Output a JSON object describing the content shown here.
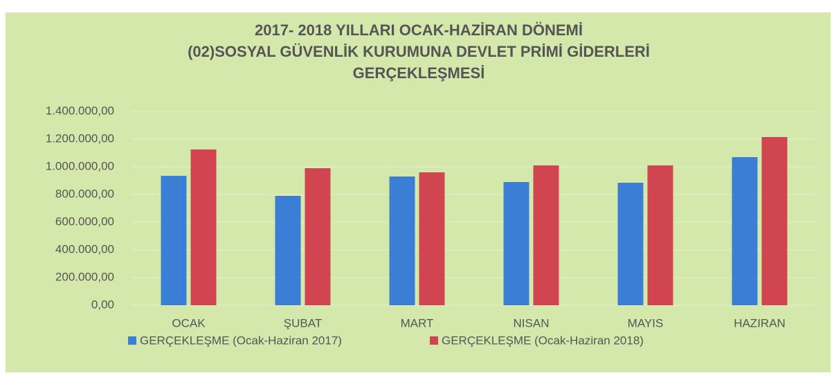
{
  "chart_data": {
    "type": "bar",
    "title": [
      "2017- 2018 YILLARI OCAK-HAZİRAN DÖNEMİ",
      "(02)SOSYAL GÜVENLİK KURUMUNA DEVLET PRİMİ GİDERLERİ",
      "GERÇEKLEŞMESİ"
    ],
    "categories": [
      "OCAK",
      "ŞUBAT",
      "MART",
      "NISAN",
      "MAYIS",
      "HAZIRAN"
    ],
    "series": [
      {
        "name": "GERÇEKLEŞME (Ocak-Haziran 2017)",
        "color": "#3a7fd5",
        "values": [
          935000,
          790000,
          930000,
          890000,
          885000,
          1070000
        ]
      },
      {
        "name": "GERÇEKLEŞME (Ocak-Haziran 2018)",
        "color": "#d0454f",
        "values": [
          1125000,
          990000,
          960000,
          1010000,
          1010000,
          1215000
        ]
      }
    ],
    "ylim": [
      0,
      1400000
    ],
    "yticks": [
      {
        "value": 0,
        "label": "0,00"
      },
      {
        "value": 200000,
        "label": "200.000,00"
      },
      {
        "value": 400000,
        "label": "400.000,00"
      },
      {
        "value": 600000,
        "label": "600.000,00"
      },
      {
        "value": 800000,
        "label": "800.000,00"
      },
      {
        "value": 1000000,
        "label": "1.000.000,00"
      },
      {
        "value": 1200000,
        "label": "1.200.000,00"
      },
      {
        "value": 1400000,
        "label": "1.400.000,00"
      }
    ],
    "grid": true,
    "legend": "bottom"
  }
}
